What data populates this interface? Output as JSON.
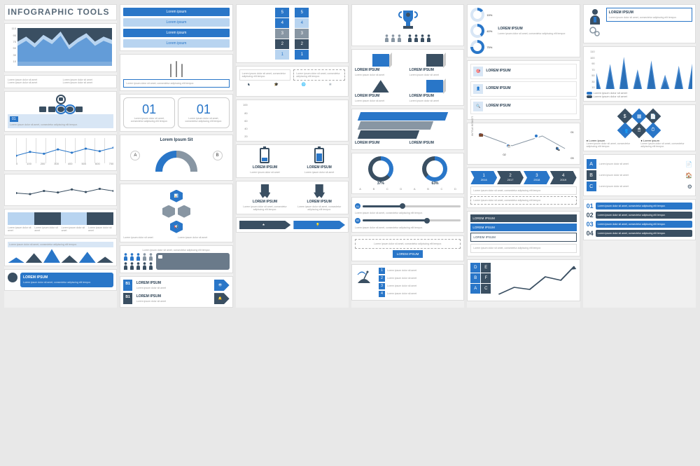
{
  "colors": {
    "blue": "#2976c8",
    "dark": "#3a4f62",
    "grey": "#8896a3",
    "light": "#b8d4f0",
    "bg": "#f0f0f0"
  },
  "title": "INFOGRAPHIC TOOLS",
  "lorem_btn": "Lorem ipsum",
  "lorem_h": "LOREM IPSUM",
  "lorem_s": "Lorem ipsum dolor sit amet, consectetur adipiscing elit tempor.",
  "lorem_xs": "Lorem ipsum dolor sit amet",
  "lorem_full": "Lorem ipsum dolor sit amet, consectetur adipiscing elit, sed do eiusmod tempor incididunt ut labore et dolore.",
  "col1": {
    "area": {
      "ylabels": [
        "110",
        "90",
        "70",
        "50",
        "30",
        "10"
      ],
      "series": [
        60,
        75,
        55,
        80,
        65,
        90,
        50,
        70,
        85,
        60,
        75,
        65
      ]
    },
    "tag": "01",
    "xaxis": [
      "0",
      "100",
      "200",
      "300",
      "400",
      "500",
      "600",
      "700"
    ],
    "line1": [
      30,
      45,
      38,
      55,
      42,
      58,
      48,
      62
    ],
    "line2": [
      25,
      20,
      35,
      28,
      42,
      30,
      45,
      35
    ],
    "peaks": [
      40,
      70,
      100,
      55,
      80,
      45
    ]
  },
  "col2": {
    "card_num": "01",
    "ab": {
      "a": "A",
      "b": "B",
      "title": "Lorem Ipsum Sit"
    },
    "b1_items": [
      "B1",
      "B1"
    ]
  },
  "col3": {
    "stack_a": [
      {
        "n": "1",
        "c": "lite"
      },
      {
        "n": "2",
        "c": "dark"
      },
      {
        "n": "3",
        "c": "grey"
      },
      {
        "n": "4",
        "c": "blue"
      },
      {
        "n": "5",
        "c": "blue"
      }
    ],
    "stack_b": [
      {
        "n": "1",
        "c": "blue"
      },
      {
        "n": "2",
        "c": "dark"
      },
      {
        "n": "3",
        "c": "grey"
      },
      {
        "n": "4",
        "c": "lite"
      },
      {
        "n": "5",
        "c": "blue"
      }
    ],
    "bar_y": [
      "100",
      "80",
      "60",
      "40",
      "20"
    ],
    "bars": [
      [
        60,
        45
      ],
      [
        85,
        70
      ],
      [
        50,
        65
      ],
      [
        75,
        55
      ],
      [
        90,
        80
      ]
    ],
    "battery": [
      30,
      65
    ]
  },
  "col4": {
    "people_l": 3,
    "people_r": 4,
    "donuts": [
      {
        "pct": 37,
        "lbl": "37%"
      },
      {
        "pct": 63,
        "lbl": "63%"
      }
    ],
    "abcd": [
      "A",
      "B",
      "C",
      "D",
      "A",
      "B",
      "C",
      "D"
    ],
    "sliders": [
      {
        "n": "01",
        "v": 40
      },
      {
        "n": "02",
        "v": 65
      }
    ],
    "numlist": [
      "1",
      "2",
      "3",
      "4"
    ]
  },
  "col5": {
    "minis": [
      {
        "p": 15,
        "l": "15%"
      },
      {
        "p": 40,
        "l": "40%"
      },
      {
        "p": 75,
        "l": "75%"
      }
    ],
    "path_labels": [
      "01",
      "02",
      "03"
    ],
    "years": [
      {
        "n": "1",
        "y": "2016"
      },
      {
        "n": "2",
        "y": "2017"
      },
      {
        "n": "3",
        "y": "2018"
      },
      {
        "n": "4",
        "y": "2019"
      }
    ],
    "grid": [
      "D",
      "E",
      "B",
      "F",
      "A",
      "C"
    ]
  },
  "col6": {
    "peak_y": [
      "110",
      "100",
      "90",
      "70",
      "50",
      "30",
      "10"
    ],
    "peaks": [
      45,
      70,
      90,
      55,
      80,
      40,
      65,
      75
    ],
    "legend": [
      "Lorem ipsum dolor sit amet",
      "Lorem ipsum dolor sit amet"
    ],
    "letters": [
      "A",
      "B",
      "C"
    ],
    "nums": [
      "01",
      "02",
      "03",
      "04"
    ]
  }
}
